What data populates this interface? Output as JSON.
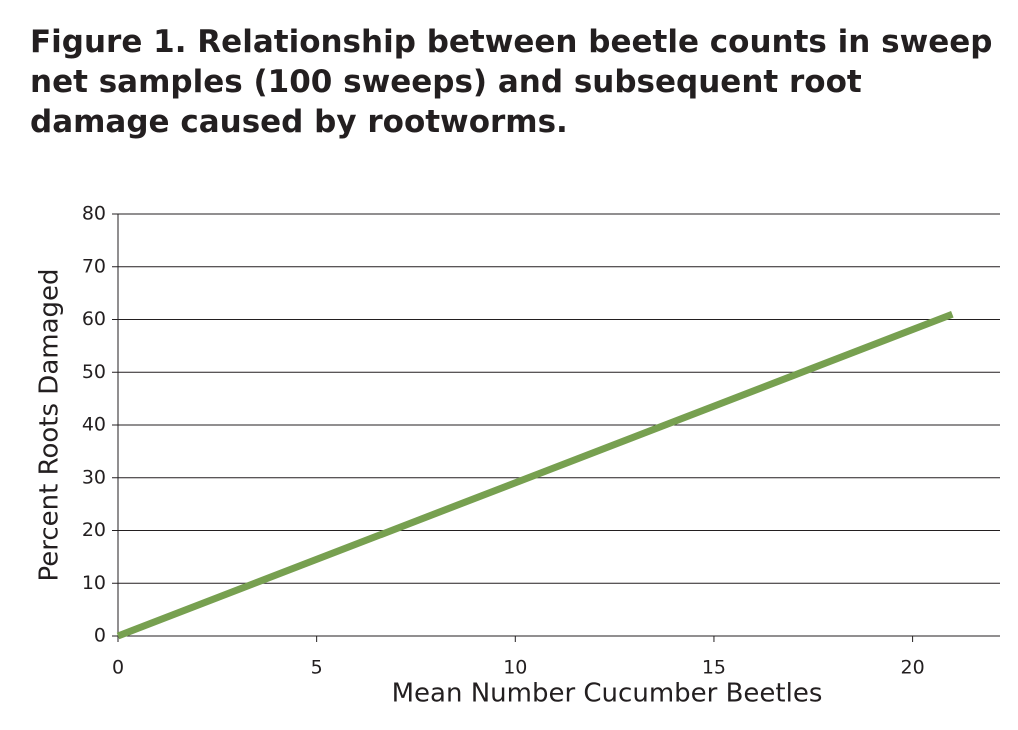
{
  "chart_data": {
    "type": "line",
    "title": "Figure 1. Relationship between beetle counts in sweep net samples (100 sweeps) and subsequent root damage caused by rootworms.",
    "x_label": "Mean Number Cucumber Beetles",
    "y_label": "Percent Roots Damaged",
    "x": [
      0,
      21
    ],
    "series": [
      {
        "name": "Roots damaged",
        "color": "#77a050",
        "values": [
          0,
          61
        ]
      }
    ],
    "xlim": [
      0,
      22.2
    ],
    "xticks": [
      0,
      5,
      10,
      15,
      20
    ],
    "ylim": [
      0,
      80
    ],
    "yticks": [
      0,
      10,
      20,
      30,
      40,
      50,
      60,
      70,
      80
    ],
    "grid": true
  }
}
